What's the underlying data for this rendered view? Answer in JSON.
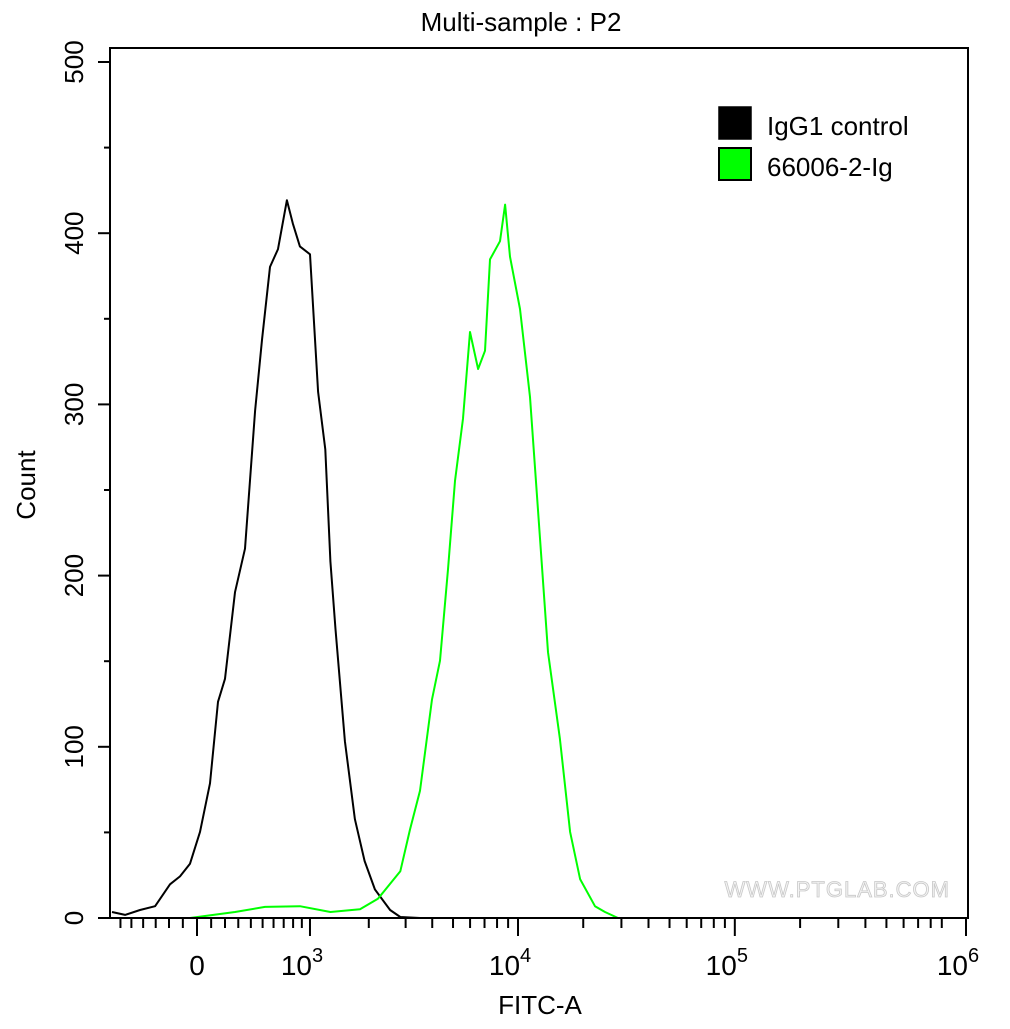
{
  "chart_data": {
    "type": "line",
    "title": "Multi-sample : P2",
    "xlabel": "FITC-A",
    "ylabel": "Count",
    "xscale": "biexponential",
    "xlim": [
      -700,
      1000000
    ],
    "ylim": [
      0,
      500
    ],
    "y_ticks": [
      0,
      100,
      200,
      300,
      400,
      500
    ],
    "x_ticks": [
      {
        "value": 0,
        "base": "0",
        "exp": ""
      },
      {
        "value": 1000,
        "base": "10",
        "exp": "3"
      },
      {
        "value": 10000,
        "base": "10",
        "exp": "4"
      },
      {
        "value": 100000,
        "base": "10",
        "exp": "5"
      },
      {
        "value": 1000000,
        "base": "10",
        "exp": "6"
      }
    ],
    "legend_position": "top-right",
    "watermark": "WWW.PTGLAB.COM",
    "series": [
      {
        "name": "IgG1 control",
        "color": "#000000",
        "x": [
          -683,
          -557,
          -426,
          -305,
          -193,
          -120,
          -49,
          21,
          92,
          149,
          200,
          275,
          353,
          435,
          495,
          567,
          643,
          733,
          797,
          877,
          1000,
          1107,
          1209,
          1286,
          1366,
          1525,
          1710,
          1909,
          2141,
          2533,
          2831,
          3507
        ],
        "y": [
          3.5,
          1.8,
          4.7,
          7.6,
          19,
          25,
          31,
          51,
          78,
          127,
          139,
          191,
          215,
          297,
          337,
          381,
          390,
          420,
          405,
          393,
          387,
          308,
          273,
          209,
          168,
          104,
          57,
          34,
          16,
          4.7,
          0.6,
          0
        ]
      },
      {
        "name": "66006-2-Ig",
        "color": "#00ff00",
        "x": [
          -49,
          275,
          521,
          877,
          1286,
          1812,
          2214,
          2831,
          3145,
          3507,
          3990,
          4350,
          4740,
          5107,
          5564,
          5995,
          6533,
          7036,
          7420,
          8254,
          8713,
          9185,
          10213,
          11360,
          12630,
          13760,
          15610,
          17390,
          19340,
          22670,
          25200,
          28930
        ],
        "y": [
          0,
          3.5,
          5.8,
          7.6,
          3.5,
          5.8,
          10.5,
          28,
          51,
          75,
          127,
          151,
          203,
          256,
          291,
          343,
          320,
          332,
          384,
          396,
          416,
          387,
          355,
          305,
          221,
          156,
          104,
          51,
          22,
          7.6,
          3.5,
          0
        ]
      }
    ]
  }
}
